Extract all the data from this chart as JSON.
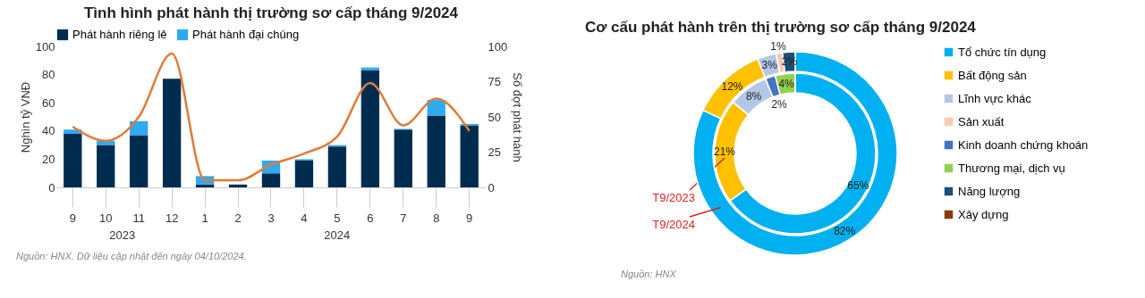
{
  "chart_data": [
    {
      "type": "bar",
      "title": "Tình hình phát hành thị trường sơ cấp tháng 9/2024",
      "ylabel": "Nghìn tỷ VNĐ",
      "y2label": "Số đợt phát hành",
      "categories": [
        "9",
        "10",
        "11",
        "12",
        "1",
        "2",
        "3",
        "4",
        "5",
        "6",
        "7",
        "8",
        "9"
      ],
      "stacked": true,
      "legend": "top",
      "ylim": [
        0,
        100
      ],
      "yticks": [
        0,
        20,
        40,
        60,
        80,
        100
      ],
      "y2lim": [
        0,
        100
      ],
      "y2ticks": [
        0,
        25,
        50,
        75,
        100
      ],
      "series": [
        {
          "name": "Phát hành riêng lẻ",
          "color": "#002d4f",
          "values": [
            38,
            30,
            37,
            77,
            2,
            2,
            10,
            19,
            29,
            83,
            41,
            51,
            44
          ]
        },
        {
          "name": "Phát hành đại chúng",
          "color": "#2eaaf0",
          "values": [
            3,
            3,
            10,
            0,
            6,
            0,
            9,
            1,
            1,
            2,
            0.5,
            11,
            1
          ]
        },
        {
          "type": "line",
          "axis": "y2",
          "color": "#e07b39",
          "values": [
            43,
            33,
            50,
            95,
            5,
            5,
            16,
            24,
            36,
            74,
            44,
            63,
            40
          ]
        }
      ],
      "annotations": [
        "2023",
        "2024",
        "Nguồn: HNX. Dữ liệu cập nhật đến ngày 04/10/2024."
      ]
    },
    {
      "type": "donut",
      "title": "Cơ cấu phát hành trên thị trường sơ cấp tháng 9/2024",
      "legend": "right",
      "categories": [
        "Tổ chức tín dụng",
        "Bất động sản",
        "Lĩnh vực khác",
        "Sản xuất",
        "Kinh doanh chứng khoán",
        "Thương mại, dịch vụ",
        "Năng lượng",
        "Xây dựng"
      ],
      "colors": [
        "#00b0f0",
        "#ffc000",
        "#b4c7e7",
        "#f8cbad",
        "#4472c4",
        "#92d050",
        "#1f4e79",
        "#843c0c"
      ],
      "series": [
        {
          "name": "T9/2023",
          "values": [
            65,
            21,
            8,
            0,
            2,
            4,
            0,
            0
          ],
          "value_labels": [
            "65%",
            "21%",
            "8%",
            null,
            "2%",
            "4%",
            null,
            null
          ]
        },
        {
          "name": "T9/2024",
          "values": [
            82,
            12,
            3,
            1,
            0,
            0,
            2,
            0
          ],
          "value_labels": [
            "82%",
            "12%",
            "3%",
            "1%",
            null,
            null,
            "2%",
            null
          ]
        }
      ],
      "annotations": [
        "Nguồn: HNX"
      ]
    }
  ]
}
